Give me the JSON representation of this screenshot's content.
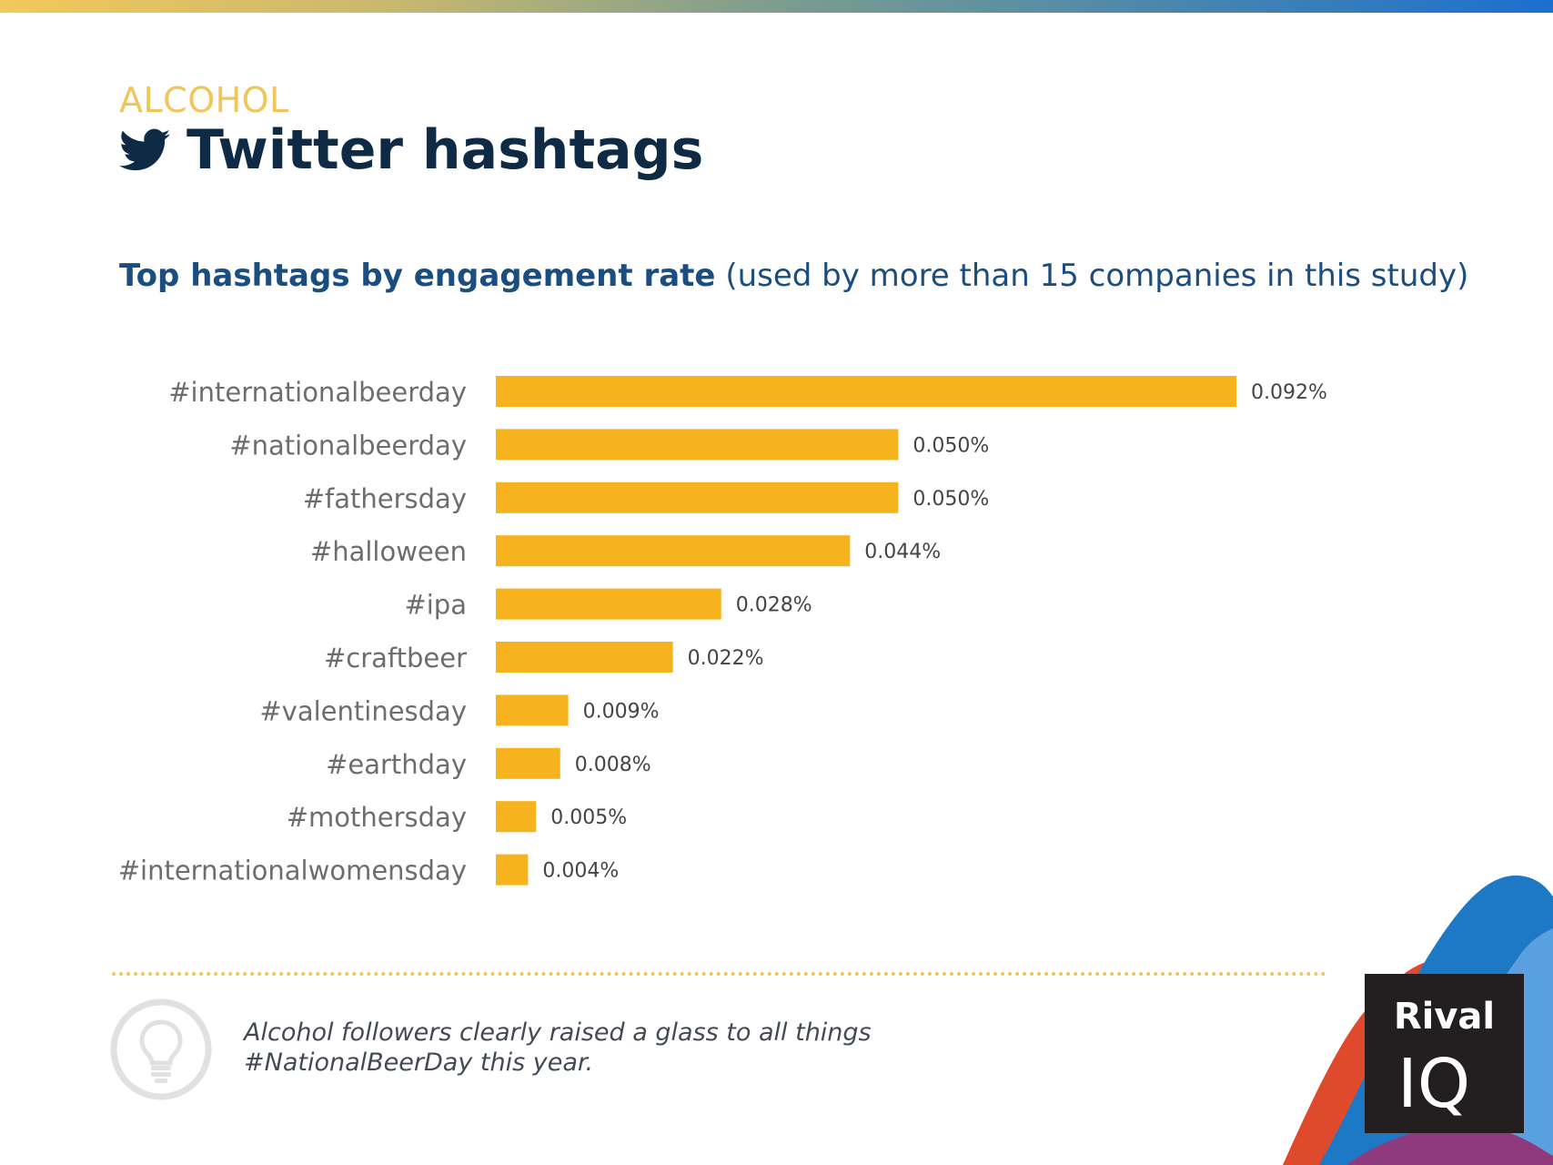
{
  "header": {
    "category": "ALCOHOL",
    "title": "Twitter hashtags",
    "title_icon": "twitter-bird-icon"
  },
  "subtitle": {
    "bold": "Top hashtags by engagement rate",
    "rest": "(used by more than 15 companies in this study)"
  },
  "chart_data": {
    "type": "bar",
    "orientation": "horizontal",
    "title": "Top hashtags by engagement rate",
    "categories": [
      "#internationalbeerday",
      "#nationalbeerday",
      "#fathersday",
      "#halloween",
      "#ipa",
      "#craftbeer",
      "#valentinesday",
      "#earthday",
      "#mothersday",
      "#internationalwomensday"
    ],
    "values": [
      0.092,
      0.05,
      0.05,
      0.044,
      0.028,
      0.022,
      0.009,
      0.008,
      0.005,
      0.004
    ],
    "value_labels": [
      "0.092%",
      "0.050%",
      "0.050%",
      "0.044%",
      "0.028%",
      "0.022%",
      "0.009%",
      "0.008%",
      "0.005%",
      "0.004%"
    ],
    "xlim": [
      0,
      0.092
    ],
    "unit": "%",
    "grid": false,
    "bar_color": "#f7b31e"
  },
  "insight": {
    "icon": "lightbulb-icon",
    "text": "Alcohol followers clearly raised a glass to all things #NationalBeerDay this year."
  },
  "brand": {
    "logo_word": "Rival",
    "logo_mark": "IQ"
  },
  "colors": {
    "category": "#f0c55a",
    "title": "#0e2a45",
    "subtitle": "#1a4d80",
    "bar": "#f7b31e",
    "label": "#6d6d6d"
  }
}
